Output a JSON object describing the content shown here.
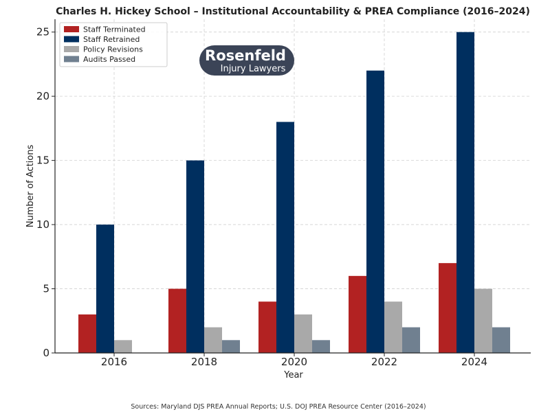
{
  "chart_data": {
    "type": "bar",
    "title": "Charles H. Hickey School – Institutional Accountability & PREA Compliance (2016–2024)",
    "xlabel": "Year",
    "ylabel": "Number of Actions",
    "categories": [
      "2016",
      "2018",
      "2020",
      "2022",
      "2024"
    ],
    "ylim": [
      0,
      26
    ],
    "yticks": [
      0,
      5,
      10,
      15,
      20,
      25
    ],
    "grid": true,
    "legend_position": "top-left",
    "series": [
      {
        "name": "Staff Terminated",
        "color": "#b22222",
        "values": [
          3,
          5,
          4,
          6,
          7
        ]
      },
      {
        "name": "Staff Retrained",
        "color": "#002f5f",
        "values": [
          10,
          15,
          18,
          22,
          25
        ]
      },
      {
        "name": "Policy Revisions",
        "color": "#a9a9a9",
        "values": [
          1,
          2,
          3,
          4,
          5
        ]
      },
      {
        "name": "Audits Passed",
        "color": "#708090",
        "values": [
          0,
          1,
          1,
          2,
          2
        ]
      }
    ]
  },
  "logo": {
    "line1": "Rosenfeld",
    "line2": "Injury Lawyers",
    "color": "#3b4457"
  },
  "source_note": "Sources: Maryland DJS PREA Annual Reports; U.S. DOJ PREA Resource Center (2016–2024)"
}
